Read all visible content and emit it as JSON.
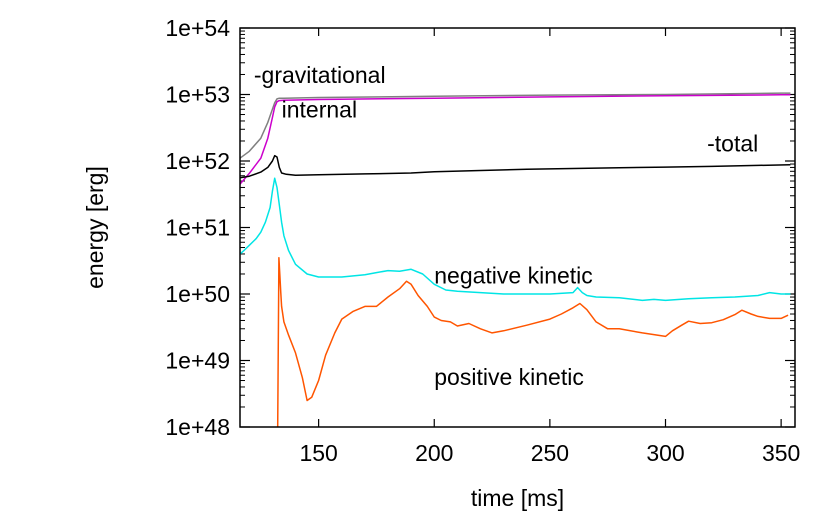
{
  "chart_data": {
    "type": "line",
    "xlabel": "time [ms]",
    "ylabel": "energy [erg]",
    "y_scale": "log",
    "xlim": [
      116,
      356
    ],
    "ylim": [
      1e+48,
      1e+54
    ],
    "x_ticks": [
      150,
      200,
      250,
      300,
      350
    ],
    "x_tick_labels": [
      "150",
      "200",
      "250",
      "300",
      "350"
    ],
    "y_ticks": [
      1e+48,
      1e+49,
      1e+50,
      1e+51,
      1e+52,
      1e+53,
      1e+54
    ],
    "y_tick_labels": [
      "1e+48",
      "1e+49",
      "1e+50",
      "1e+51",
      "1e+52",
      "1e+53",
      "1e+54"
    ],
    "grid": false,
    "series": [
      {
        "name": "-gravitational",
        "color": "#808080",
        "x": [
          116,
          120,
          125,
          128,
          130,
          131,
          132,
          133,
          135,
          150,
          200,
          250,
          300,
          350,
          354
        ],
        "y": [
          1.1e+52,
          1.4e+52,
          2.2e+52,
          3.8e+52,
          6e+52,
          7.5e+52,
          8.6e+52,
          8.8e+52,
          8.8e+52,
          9e+52,
          9.4e+52,
          9.8e+52,
          1e+53,
          1.05e+53,
          1.05e+53
        ]
      },
      {
        "name": "internal",
        "color": "#cc00cc",
        "x": [
          116,
          120,
          125,
          128,
          130,
          131,
          132,
          133,
          135,
          150,
          200,
          250,
          300,
          350,
          354
        ],
        "y": [
          4.5e+51,
          6.5e+51,
          1.1e+52,
          2.2e+52,
          4.5e+52,
          6.5e+52,
          7.8e+52,
          8.1e+52,
          8.2e+52,
          8.4e+52,
          8.8e+52,
          9.2e+52,
          9.6e+52,
          9.9e+52,
          9.9e+52
        ]
      },
      {
        "name": "-total",
        "color": "#000000",
        "x": [
          116,
          120,
          125,
          128,
          130,
          131,
          132,
          133,
          134,
          136,
          140,
          150,
          170,
          190,
          200,
          220,
          240,
          260,
          280,
          300,
          320,
          340,
          354
        ],
        "y": [
          5.6e+51,
          5.9e+51,
          6.8e+51,
          8e+51,
          1e+52,
          1.2e+52,
          1.15e+52,
          8e+51,
          6.6e+51,
          6.3e+51,
          6.1e+51,
          6.2e+51,
          6.4e+51,
          6.6e+51,
          6.9e+51,
          7.2e+51,
          7.5e+51,
          7.7e+51,
          7.9e+51,
          8.1e+51,
          8.3e+51,
          8.6e+51,
          8.8e+51
        ]
      },
      {
        "name": "negative kinetic",
        "color": "#00e5e5",
        "x": [
          116,
          118,
          120,
          123,
          125,
          127,
          129,
          130,
          131,
          132,
          133,
          134,
          135,
          137,
          140,
          145,
          150,
          160,
          170,
          175,
          180,
          185,
          190,
          195,
          200,
          205,
          210,
          220,
          230,
          240,
          250,
          260,
          262,
          264,
          266,
          270,
          280,
          290,
          295,
          300,
          310,
          320,
          330,
          340,
          345,
          350,
          354
        ],
        "y": [
          4e+50,
          4.6e+50,
          5.4e+50,
          6.8e+50,
          8.5e+50,
          1.2e+51,
          2e+51,
          3.5e+51,
          5.5e+51,
          4e+51,
          2.2e+51,
          1.2e+51,
          7.5e+50,
          4.5e+50,
          2.8e+50,
          2e+50,
          1.8e+50,
          1.8e+50,
          1.95e+50,
          2.1e+50,
          2.25e+50,
          2.2e+50,
          2.35e+50,
          2e+50,
          1.4e+50,
          1.15e+50,
          1.1e+50,
          1.05e+50,
          1e+50,
          1e+50,
          1e+50,
          1.05e+50,
          1.25e+50,
          1.05e+50,
          9.5e+49,
          9e+49,
          8.8e+49,
          8e+49,
          8.3e+49,
          8e+49,
          8.5e+49,
          8.8e+49,
          9e+49,
          9.5e+49,
          1.05e+50,
          1e+50,
          1e+50
        ]
      },
      {
        "name": "positive kinetic",
        "color": "#ff5500",
        "x": [
          132.3,
          132.8,
          133.2,
          133.6,
          134,
          135,
          137,
          140,
          143,
          145,
          147,
          150,
          153,
          157,
          160,
          165,
          170,
          175,
          180,
          185,
          188,
          190,
          193,
          197,
          200,
          203,
          207,
          210,
          215,
          220,
          225,
          230,
          240,
          250,
          255,
          260,
          263,
          266,
          270,
          275,
          280,
          290,
          300,
          303,
          307,
          310,
          315,
          320,
          325,
          330,
          333,
          337,
          340,
          345,
          350,
          353
        ],
        "y": [
          1e+48,
          3.5e+50,
          2e+50,
          1.1e+50,
          6.5e+49,
          3.8e+49,
          2.4e+49,
          1.3e+49,
          5.5e+48,
          2.5e+48,
          2.8e+48,
          5e+48,
          1.2e+49,
          2.6e+49,
          4.2e+49,
          5.5e+49,
          6.5e+49,
          6.5e+49,
          9e+49,
          1.2e+50,
          1.55e+50,
          1.4e+50,
          9.5e+49,
          6.5e+49,
          4.5e+49,
          4e+49,
          3.8e+49,
          3.3e+49,
          3.6e+49,
          3e+49,
          2.6e+49,
          2.8e+49,
          3.4e+49,
          4.2e+49,
          5e+49,
          6.2e+49,
          7.2e+49,
          5.8e+49,
          3.8e+49,
          3e+49,
          3e+49,
          2.6e+49,
          2.3e+49,
          2.8e+49,
          3.4e+49,
          3.9e+49,
          3.6e+49,
          3.7e+49,
          4.1e+49,
          4.9e+49,
          5.7e+49,
          5e+49,
          4.6e+49,
          4.3e+49,
          4.3e+49,
          4.8e+49
        ]
      }
    ],
    "annotations": [
      {
        "text": "-gravitational",
        "x": 122,
        "y": 1.5e+53
      },
      {
        "text": "internal",
        "x": 134,
        "y": 4.5e+52
      },
      {
        "text": "-total",
        "x": 318,
        "y": 1.4e+52
      },
      {
        "text": "negative kinetic",
        "x": 200,
        "y": 1.45e+50
      },
      {
        "text": "positive kinetic",
        "x": 200,
        "y": 4.3e+48
      }
    ]
  }
}
